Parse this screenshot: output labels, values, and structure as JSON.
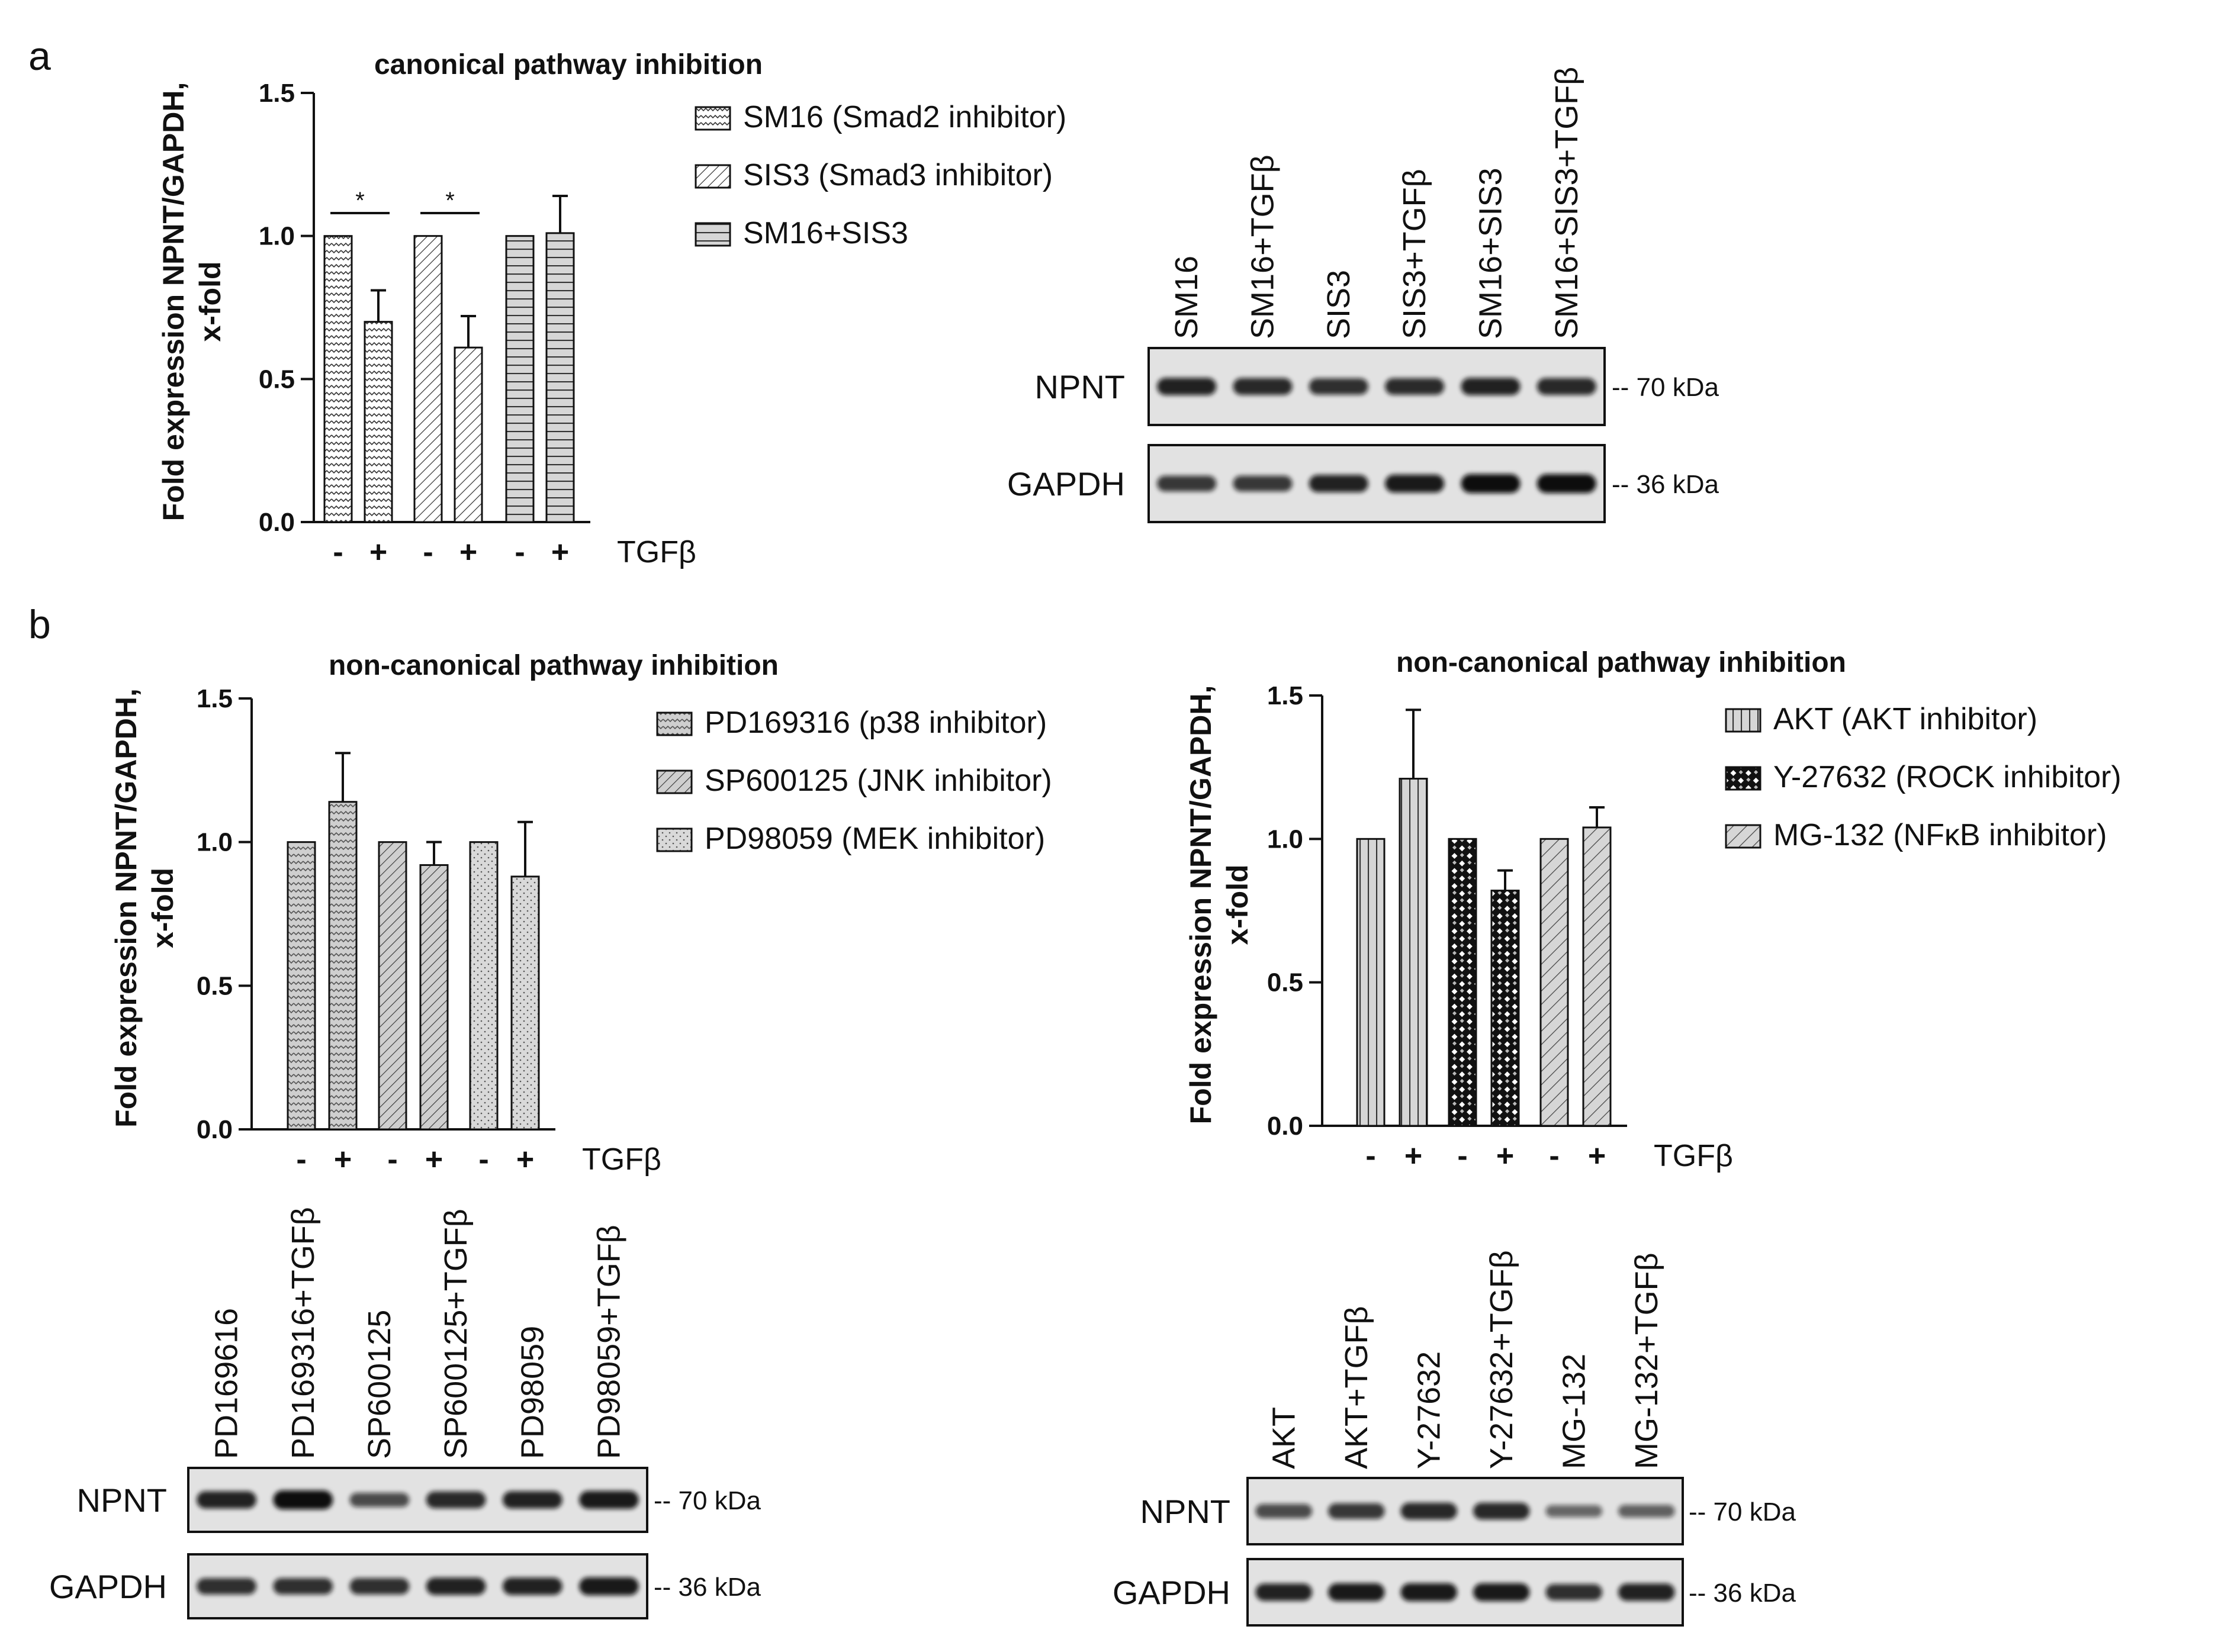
{
  "panel_letters": {
    "a": "a",
    "b": "b"
  },
  "common": {
    "tgf_label": "TGFβ",
    "signs": [
      "-",
      "+",
      "-",
      "+",
      "-",
      "+"
    ],
    "bands": [
      "NPNT",
      "GAPDH"
    ],
    "markers": [
      "-- 70 kDa",
      "-- 36 kDa"
    ]
  },
  "chart_data": [
    {
      "type": "bar",
      "id": "chart_a",
      "title": "canonical pathway inhibition",
      "ylabel_lines": [
        "Fold expression NPNT/GAPDH,",
        "x-fold"
      ],
      "xlabel": "TGFβ",
      "categories": [
        "-",
        "+",
        "-",
        "+",
        "-",
        "+"
      ],
      "values": [
        1.0,
        0.7,
        1.0,
        0.61,
        1.0,
        1.01
      ],
      "errors": [
        0,
        0.11,
        0,
        0.11,
        0,
        0.13
      ],
      "ylim": [
        0,
        1.5
      ],
      "yticks": [
        "0.0",
        "0.5",
        "1.0",
        "1.5"
      ],
      "series": [
        {
          "name": "SM16 (Smad2 inhibitor)",
          "pattern": "zigzag"
        },
        {
          "name": "SIS3 (Smad3 inhibitor)",
          "pattern": "diag"
        },
        {
          "name": "SM16+SIS3",
          "pattern": "horiz"
        }
      ],
      "significance": [
        "*",
        "*"
      ]
    },
    {
      "type": "bar",
      "id": "chart_b1",
      "title": "non-canonical pathway inhibition",
      "ylabel_lines": [
        "Fold expression NPNT/GAPDH,",
        "x-fold"
      ],
      "xlabel": "TGFβ",
      "categories": [
        "-",
        "+",
        "-",
        "+",
        "-",
        "+"
      ],
      "values": [
        1.0,
        1.14,
        1.0,
        0.92,
        1.0,
        0.88
      ],
      "errors": [
        0,
        0.17,
        0,
        0.08,
        0,
        0.19
      ],
      "ylim": [
        0,
        1.5
      ],
      "yticks": [
        "0.0",
        "0.5",
        "1.0",
        "1.5"
      ],
      "series": [
        {
          "name": "PD169316 (p38 inhibitor)",
          "pattern": "zigzag-gray"
        },
        {
          "name": "SP600125 (JNK inhibitor)",
          "pattern": "diag-gray"
        },
        {
          "name": "PD98059 (MEK inhibitor)",
          "pattern": "dots"
        }
      ]
    },
    {
      "type": "bar",
      "id": "chart_b2",
      "title": "non-canonical pathway inhibition",
      "ylabel_lines": [
        "Fold expression NPNT/GAPDH,",
        "x-fold"
      ],
      "xlabel": "TGFβ",
      "categories": [
        "-",
        "+",
        "-",
        "+",
        "-",
        "+"
      ],
      "values": [
        1.0,
        1.21,
        1.0,
        0.82,
        1.0,
        1.04
      ],
      "errors": [
        0,
        0.24,
        0,
        0.07,
        0,
        0.07
      ],
      "ylim": [
        0,
        1.5
      ],
      "yticks": [
        "0.0",
        "0.5",
        "1.0",
        "1.5"
      ],
      "series": [
        {
          "name": "AKT (AKT inhibitor)",
          "pattern": "vert"
        },
        {
          "name": "Y-27632 (ROCK inhibitor)",
          "pattern": "check"
        },
        {
          "name": "MG-132 (NFκB inhibitor)",
          "pattern": "diag-wide"
        }
      ]
    }
  ],
  "blots": [
    {
      "id": "blot_a",
      "lanes": [
        "SM16",
        "SM16+TGFβ",
        "SIS3",
        "SIS3+TGFβ",
        "SM16+SIS3",
        "SM16+SIS3+TGFβ"
      ],
      "npnt_intensity": [
        0.85,
        0.8,
        0.75,
        0.78,
        0.85,
        0.8
      ],
      "gapdh_intensity": [
        0.7,
        0.7,
        0.85,
        0.9,
        1.0,
        1.0
      ]
    },
    {
      "id": "blot_b1",
      "lanes": [
        "PD169616",
        "PD169316+TGFβ",
        "SP600125",
        "SP600125+TGFβ",
        "PD98059",
        "PD98059+TGFβ"
      ],
      "npnt_intensity": [
        0.85,
        1.0,
        0.55,
        0.8,
        0.85,
        0.9
      ],
      "gapdh_intensity": [
        0.75,
        0.75,
        0.75,
        0.85,
        0.85,
        0.9
      ]
    },
    {
      "id": "blot_b2",
      "lanes": [
        "AKT",
        "AKT+TGFβ",
        "Y-27632",
        "Y-27632+TGFβ",
        "MG-132",
        "MG-132+TGFβ"
      ],
      "npnt_intensity": [
        0.55,
        0.7,
        0.8,
        0.8,
        0.35,
        0.4
      ],
      "gapdh_intensity": [
        0.85,
        0.9,
        0.9,
        0.9,
        0.75,
        0.85
      ]
    }
  ]
}
